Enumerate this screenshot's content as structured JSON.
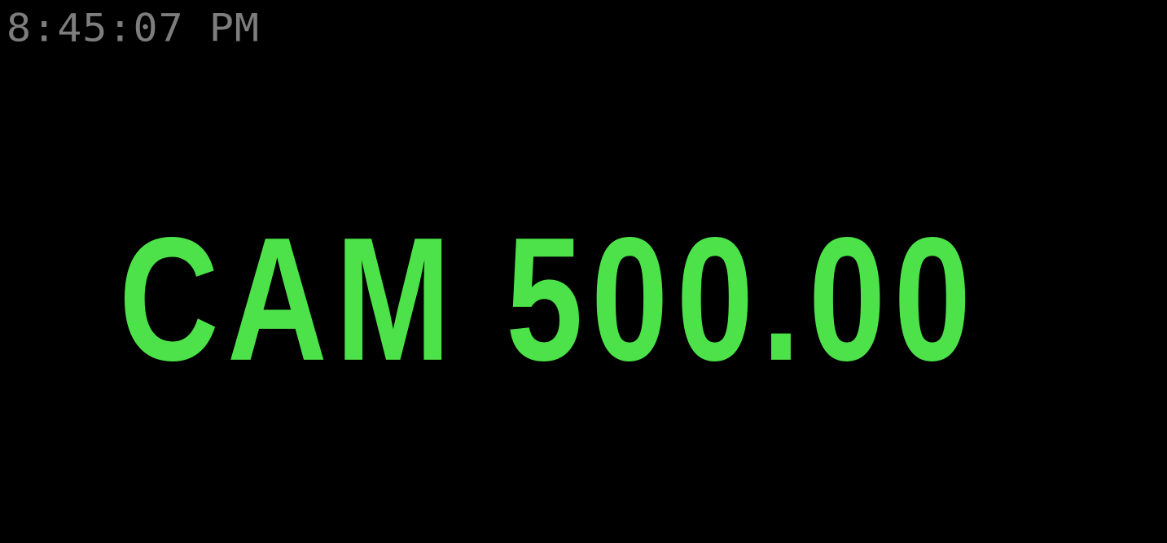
{
  "display": {
    "time": "8:45:07 PM",
    "amount_text": "CAM 500.00"
  },
  "colors": {
    "background": "#000000",
    "time": "#7d7d7d",
    "amount": "#4de24a"
  }
}
